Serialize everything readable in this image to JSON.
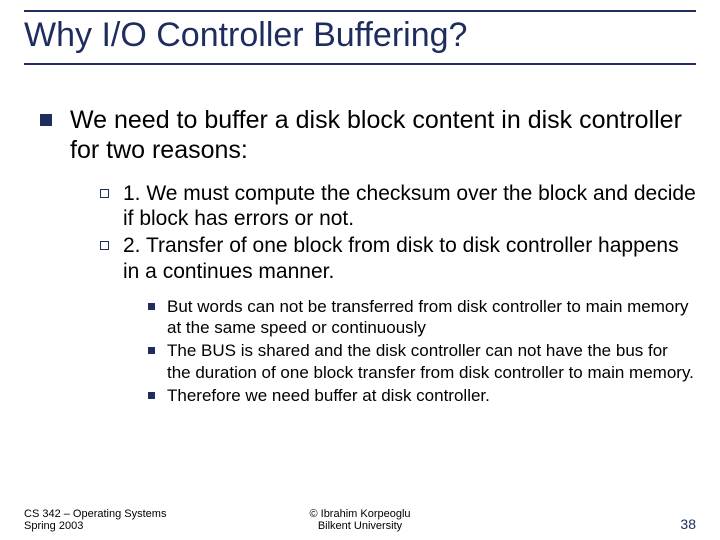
{
  "title": "Why I/O Controller Buffering?",
  "main_point": "We need to buffer a disk block content in disk controller for two reasons:",
  "sub_points": [
    "1. We must compute the checksum over the block and decide if block has errors or not.",
    "2. Transfer of one block  from disk to disk controller happens in a continues manner."
  ],
  "sub_sub_points": [
    "But words can not be transferred from  disk  controller to main memory at the same speed or continuously",
    "The BUS is shared and the disk controller can not have the bus for the duration of one block transfer from disk controller to main memory.",
    "Therefore we need buffer at disk controller."
  ],
  "footer": {
    "left_line1": "CS 342 – Operating Systems",
    "left_line2": "Spring 2003",
    "center_line1": "© Ibrahim Korpeoglu",
    "center_line2": "Bilkent University",
    "page": "38"
  },
  "colors": {
    "accent": "#1f2c5e",
    "text": "#000000",
    "bg": "#ffffff"
  }
}
